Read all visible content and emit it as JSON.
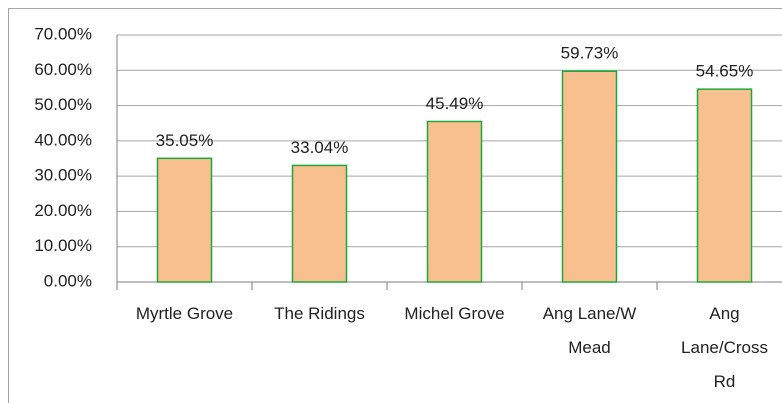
{
  "chart_data": {
    "type": "bar",
    "categories": [
      "Myrtle Grove",
      "The Ridings",
      "Michel Grove",
      "Ang Lane/W Mead",
      "Ang Lane/Cross Rd"
    ],
    "values": [
      35.05,
      33.04,
      45.49,
      59.73,
      54.65
    ],
    "value_labels": [
      "35.05%",
      "33.04%",
      "45.49%",
      "59.73%",
      "54.65%"
    ],
    "color": "#f9c08f",
    "edge_color": "#1ea83c",
    "ylim": [
      0,
      70
    ],
    "yticks": [
      {
        "value": 0,
        "label": "0.00%"
      },
      {
        "value": 10,
        "label": "10.00%"
      },
      {
        "value": 20,
        "label": "20.00%"
      },
      {
        "value": 30,
        "label": "30.00%"
      },
      {
        "value": 40,
        "label": "40.00%"
      },
      {
        "value": 50,
        "label": "50.00%"
      },
      {
        "value": 60,
        "label": "60.00%"
      },
      {
        "value": 70,
        "label": "70.00%"
      }
    ],
    "grid": true
  }
}
